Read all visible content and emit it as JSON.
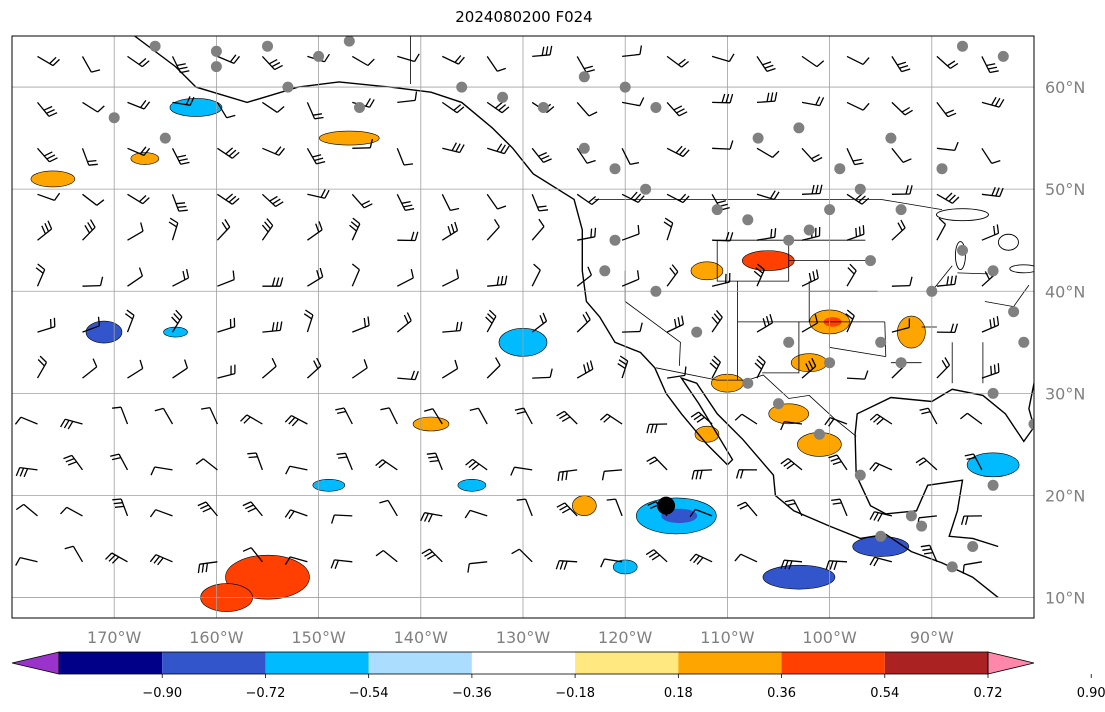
{
  "title": "2024080200 F024",
  "map": {
    "lon_range": [
      -180,
      -80
    ],
    "lat_range": [
      8,
      65
    ],
    "lon_ticks": [
      {
        "value": -170,
        "label": "170°W"
      },
      {
        "value": -160,
        "label": "160°W"
      },
      {
        "value": -150,
        "label": "150°W"
      },
      {
        "value": -140,
        "label": "140°W"
      },
      {
        "value": -130,
        "label": "130°W"
      },
      {
        "value": -120,
        "label": "120°W"
      },
      {
        "value": -110,
        "label": "110°W"
      },
      {
        "value": -100,
        "label": "100°W"
      },
      {
        "value": -90,
        "label": "90°W"
      }
    ],
    "lat_ticks": [
      {
        "value": 10,
        "label": "10°N"
      },
      {
        "value": 20,
        "label": "20°N"
      },
      {
        "value": 30,
        "label": "30°N"
      },
      {
        "value": 40,
        "label": "40°N"
      },
      {
        "value": 50,
        "label": "50°N"
      },
      {
        "value": 60,
        "label": "60°N"
      }
    ],
    "gridlines": true,
    "colors": {
      "land_border": "#000000",
      "grid": "#a0a0a0",
      "tick_label": "#808080",
      "station_dot": "#808080"
    },
    "tc_marker": {
      "lon": -116,
      "lat": 19,
      "color": "#000000"
    }
  },
  "colorbar": {
    "colors": [
      "#9933cc",
      "#000088",
      "#3355cc",
      "#00bbff",
      "#aaddff",
      "#ffffff",
      "#ffe880",
      "#ffa500",
      "#ff4000",
      "#aa2222",
      "#ff88aa"
    ],
    "tick_labels": [
      "−0.90",
      "−0.72",
      "−0.54",
      "−0.36",
      "−0.18",
      "0.18",
      "0.36",
      "0.54",
      "0.72",
      "0.90"
    ]
  },
  "chart_data": {
    "type": "heatmap",
    "title": "2024080200 F024",
    "xlabel": "",
    "ylabel": "",
    "xlim": [
      -180,
      -80
    ],
    "ylim": [
      8,
      65
    ],
    "anomaly_regions": [
      {
        "lon": -162,
        "lat": 58,
        "value": -0.45
      },
      {
        "lon": -147,
        "lat": 55,
        "value": 0.45
      },
      {
        "lon": -176,
        "lat": 51,
        "value": 0.45
      },
      {
        "lon": -167,
        "lat": 53,
        "value": 0.4
      },
      {
        "lon": -171,
        "lat": 36,
        "value": -0.55
      },
      {
        "lon": -164,
        "lat": 36,
        "value": -0.4
      },
      {
        "lon": -130,
        "lat": 35,
        "value": -0.45
      },
      {
        "lon": -106,
        "lat": 43,
        "value": 0.6
      },
      {
        "lon": -112,
        "lat": 42,
        "value": 0.45
      },
      {
        "lon": -100,
        "lat": 37,
        "value": 0.5
      },
      {
        "lon": -92,
        "lat": 36,
        "value": 0.45
      },
      {
        "lon": -102,
        "lat": 33,
        "value": 0.45
      },
      {
        "lon": -110,
        "lat": 31,
        "value": 0.45
      },
      {
        "lon": -104,
        "lat": 28,
        "value": 0.45
      },
      {
        "lon": -101,
        "lat": 25,
        "value": 0.45
      },
      {
        "lon": -112,
        "lat": 26,
        "value": 0.4
      },
      {
        "lon": -115,
        "lat": 18,
        "value": -0.5
      },
      {
        "lon": -103,
        "lat": 12,
        "value": -0.65
      },
      {
        "lon": -95,
        "lat": 15,
        "value": -0.55
      },
      {
        "lon": -84,
        "lat": 23,
        "value": -0.45
      },
      {
        "lon": -139,
        "lat": 27,
        "value": 0.45
      },
      {
        "lon": -155,
        "lat": 12,
        "value": 0.7
      },
      {
        "lon": -159,
        "lat": 10,
        "value": 0.6
      },
      {
        "lon": -149,
        "lat": 21,
        "value": -0.4
      },
      {
        "lon": -135,
        "lat": 21,
        "value": -0.4
      },
      {
        "lon": -124,
        "lat": 19,
        "value": 0.4
      },
      {
        "lon": -120,
        "lat": 13,
        "value": -0.4
      }
    ]
  }
}
